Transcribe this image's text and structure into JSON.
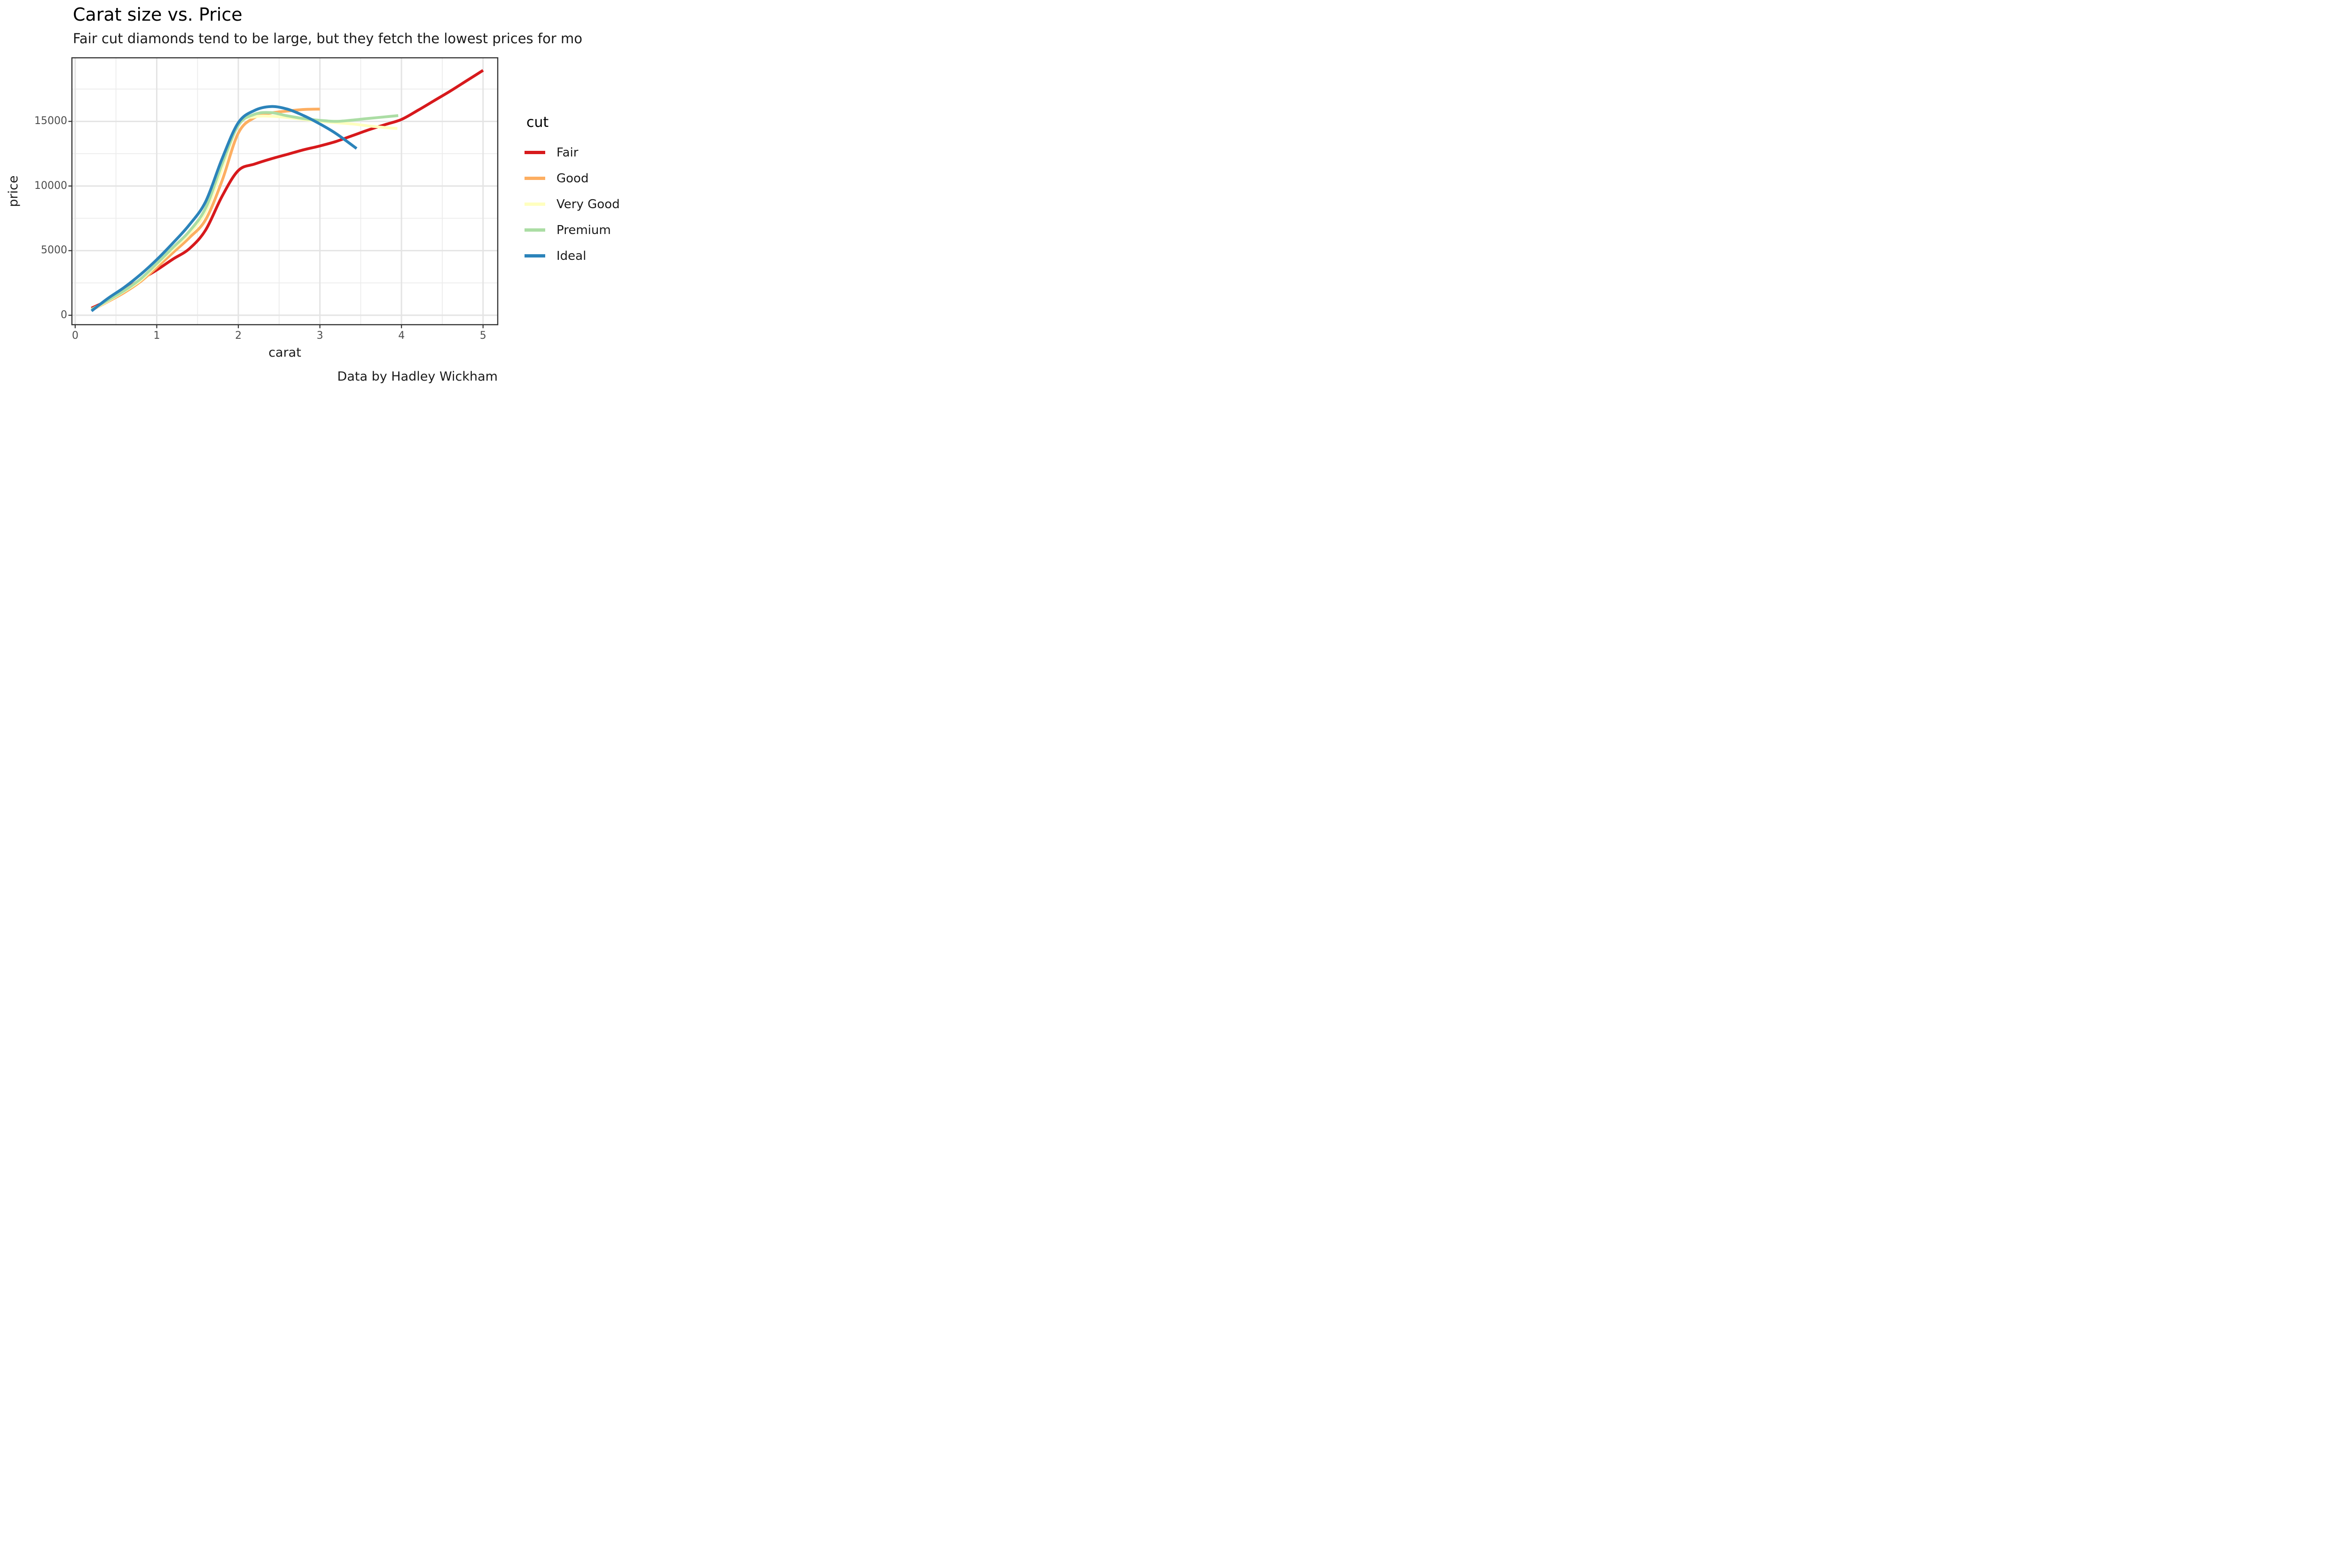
{
  "header": {
    "title": "Carat size vs. Price",
    "subtitle": "Fair cut diamonds tend to be large, but they fetch the lowest prices for mo"
  },
  "caption": "Data by Hadley Wickham",
  "colors": {
    "panel_border": "#333333",
    "tick_mark": "#333333",
    "grid_major": "#e4e4e4",
    "grid_minor": "#ececec",
    "tick_label": "#4d4d4d",
    "axis_title": "#1a1a1a",
    "fair": "#d7191c",
    "good": "#fdae61",
    "very_good": "#ffffbf",
    "premium": "#abdda4",
    "ideal": "#2b83ba"
  },
  "chart_data": {
    "type": "line",
    "title": "Carat size vs. Price",
    "subtitle": "Fair cut diamonds tend to be large, but they fetch the lowest prices for mo",
    "caption": "Data by Hadley Wickham",
    "xlabel": "carat",
    "ylabel": "price",
    "legend_title": "cut",
    "legend_position": "right",
    "grid": "major+minor",
    "xlim": [
      -0.04,
      5.18
    ],
    "ylim": [
      -730,
      19920
    ],
    "x_ticks": [
      0,
      1,
      2,
      3,
      4,
      5
    ],
    "x_minor_ticks": [
      0.5,
      1.5,
      2.5,
      3.5,
      4.5
    ],
    "y_ticks": [
      0,
      5000,
      10000,
      15000
    ],
    "y_minor_ticks": [
      2500,
      7500,
      12500,
      17500
    ],
    "series": [
      {
        "name": "Fair",
        "color": "#d7191c",
        "x": [
          0.2,
          0.4,
          0.6,
          0.8,
          1.0,
          1.2,
          1.4,
          1.6,
          1.8,
          2.0,
          2.2,
          2.4,
          2.6,
          2.8,
          3.0,
          3.2,
          3.4,
          3.6,
          3.8,
          4.0,
          4.2,
          4.4,
          4.6,
          4.8,
          5.0
        ],
        "y": [
          550,
          1150,
          1950,
          2750,
          3500,
          4350,
          5150,
          6600,
          9200,
          11200,
          11700,
          12100,
          12450,
          12800,
          13100,
          13450,
          13900,
          14350,
          14750,
          15150,
          15850,
          16600,
          17350,
          18150,
          18950
        ]
      },
      {
        "name": "Good",
        "color": "#fdae61",
        "x": [
          0.23,
          0.4,
          0.6,
          0.8,
          1.0,
          1.2,
          1.4,
          1.6,
          1.8,
          2.0,
          2.2,
          2.4,
          2.6,
          2.8,
          3.0
        ],
        "y": [
          500,
          1050,
          1750,
          2600,
          3700,
          4850,
          6000,
          7400,
          10400,
          14100,
          15300,
          15650,
          15800,
          15920,
          15950
        ]
      },
      {
        "name": "Very Good",
        "color": "#ffffbf",
        "x": [
          0.2,
          0.4,
          0.6,
          0.8,
          1.0,
          1.2,
          1.4,
          1.6,
          1.8,
          2.0,
          2.2,
          2.4,
          2.6,
          2.8,
          3.0,
          3.2,
          3.4,
          3.6,
          3.8,
          3.95
        ],
        "y": [
          420,
          1100,
          1850,
          2700,
          3900,
          5100,
          6300,
          8000,
          11300,
          14800,
          15350,
          15400,
          15300,
          15150,
          15000,
          14900,
          14800,
          14650,
          14520,
          14450
        ]
      },
      {
        "name": "Premium",
        "color": "#abdda4",
        "x": [
          0.2,
          0.4,
          0.6,
          0.8,
          1.0,
          1.2,
          1.4,
          1.6,
          1.8,
          2.0,
          2.2,
          2.4,
          2.6,
          2.8,
          3.0,
          3.2,
          3.4,
          3.6,
          3.8,
          3.96
        ],
        "y": [
          450,
          1150,
          1900,
          2800,
          4000,
          5250,
          6500,
          8300,
          11700,
          14700,
          15550,
          15680,
          15430,
          15220,
          15080,
          15000,
          15100,
          15230,
          15350,
          15450
        ]
      },
      {
        "name": "Ideal",
        "color": "#2b83ba",
        "x": [
          0.2,
          0.4,
          0.6,
          0.8,
          1.0,
          1.2,
          1.4,
          1.6,
          1.8,
          2.0,
          2.2,
          2.4,
          2.6,
          2.8,
          3.0,
          3.2,
          3.45
        ],
        "y": [
          330,
          1300,
          2150,
          3150,
          4300,
          5600,
          7000,
          8800,
          12100,
          14900,
          15850,
          16150,
          15950,
          15450,
          14800,
          14050,
          12900
        ]
      }
    ]
  }
}
